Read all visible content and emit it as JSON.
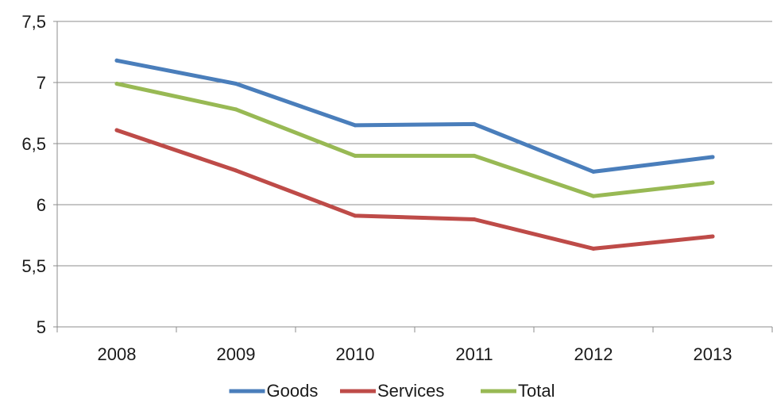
{
  "chart_data": {
    "type": "line",
    "title": "",
    "xlabel": "",
    "ylabel": "",
    "categories": [
      "2008",
      "2009",
      "2010",
      "2011",
      "2012",
      "2013"
    ],
    "ylim": [
      5,
      7.5
    ],
    "yticks": [
      "5",
      "5,5",
      "6",
      "6,5",
      "7",
      "7,5"
    ],
    "grid": true,
    "legend_position": "bottom",
    "series": [
      {
        "name": "Goods",
        "color": "#4a7ebb",
        "values": [
          7.18,
          6.99,
          6.65,
          6.66,
          6.27,
          6.39
        ]
      },
      {
        "name": "Services",
        "color": "#be4b48",
        "values": [
          6.61,
          6.28,
          5.91,
          5.88,
          5.64,
          5.74
        ]
      },
      {
        "name": "Total",
        "color": "#98b954",
        "values": [
          6.99,
          6.78,
          6.4,
          6.4,
          6.07,
          6.18
        ]
      }
    ]
  }
}
